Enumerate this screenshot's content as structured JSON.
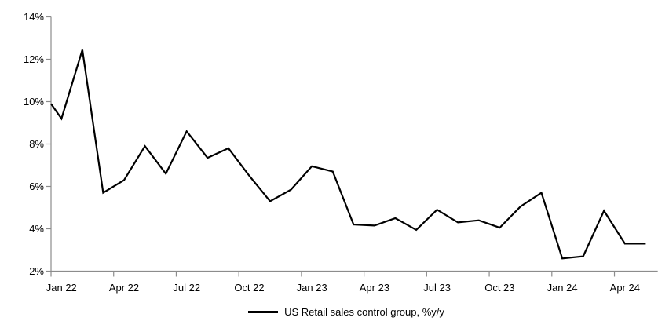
{
  "page": {
    "background": "#ffffff"
  },
  "chart_data": {
    "type": "line",
    "title": "",
    "legend_label": "US Retail sales control group, %y/y",
    "series": [
      {
        "name": "US Retail sales control group, %y/y",
        "values": [
          9.2,
          12.45,
          5.7,
          6.3,
          7.9,
          6.6,
          8.6,
          7.35,
          7.8,
          6.5,
          5.3,
          5.85,
          6.95,
          6.7,
          4.2,
          4.15,
          4.5,
          3.95,
          4.9,
          4.3,
          4.4,
          4.05,
          5.05,
          5.7,
          2.6,
          2.7,
          4.85,
          3.3,
          3.3
        ]
      }
    ],
    "x": [
      "Jan 22",
      "Feb 22",
      "Mar 22",
      "Apr 22",
      "May 22",
      "Jun 22",
      "Jul 22",
      "Aug 22",
      "Sep 22",
      "Oct 22",
      "Nov 22",
      "Dec 22",
      "Jan 23",
      "Feb 23",
      "Mar 23",
      "Apr 23",
      "May 23",
      "Jun 23",
      "Jul 23",
      "Aug 23",
      "Sep 23",
      "Oct 23",
      "Nov 23",
      "Dec 23",
      "Jan 24",
      "Feb 24",
      "Mar 24",
      "Apr 24",
      "May 24"
    ],
    "left_edge_partial_value": 9.9,
    "ylim": [
      2,
      14
    ],
    "y_tick_values": [
      2,
      4,
      6,
      8,
      10,
      12,
      14
    ],
    "y_tick_labels": [
      "2%",
      "4%",
      "6%",
      "8%",
      "10%",
      "12%",
      "14%"
    ],
    "x_tick_labels": [
      {
        "index": 0,
        "label": "Jan 22"
      },
      {
        "index": 3,
        "label": "Apr 22"
      },
      {
        "index": 6,
        "label": "Jul 22"
      },
      {
        "index": 9,
        "label": "Oct 22"
      },
      {
        "index": 12,
        "label": "Jan 23"
      },
      {
        "index": 15,
        "label": "Apr 23"
      },
      {
        "index": 18,
        "label": "Jul 23"
      },
      {
        "index": 21,
        "label": "Oct 23"
      },
      {
        "index": 24,
        "label": "Jan 24"
      },
      {
        "index": 27,
        "label": "Apr 24"
      }
    ],
    "grid": false,
    "legend_position": "bottom-center",
    "line_color": "#000000",
    "axis_color": "#8c8c8c",
    "text_color": "#000000"
  }
}
